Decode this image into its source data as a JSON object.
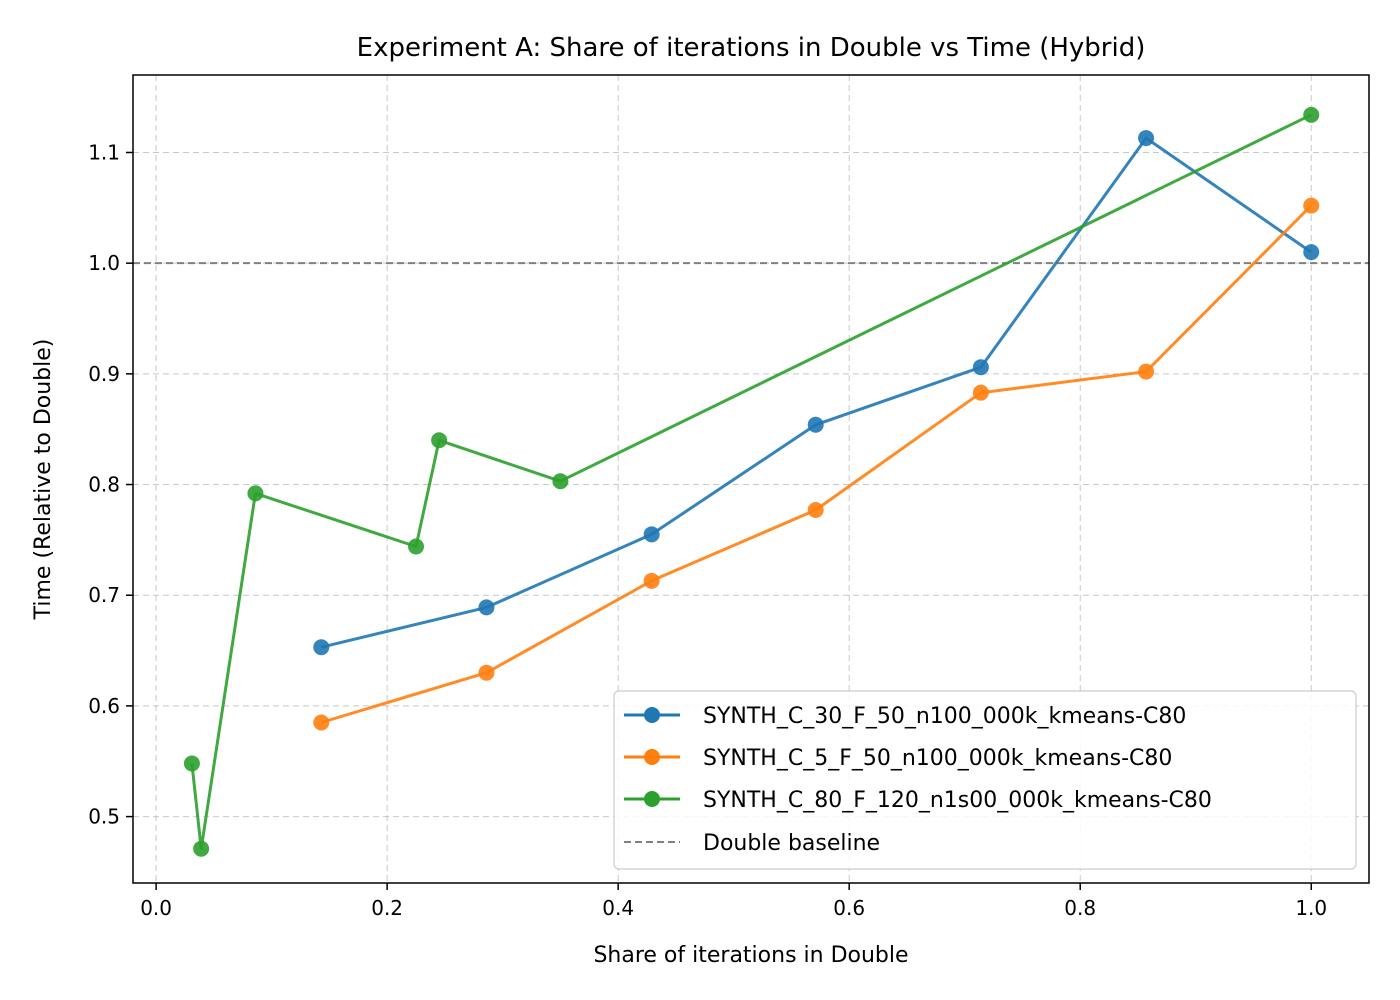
{
  "chart_data": {
    "type": "line",
    "title": "Experiment A: Share of iterations in Double vs Time (Hybrid)",
    "xlabel": "Share of iterations in Double",
    "ylabel": "Time (Relative to Double)",
    "xlim": [
      -0.02,
      1.05
    ],
    "ylim": [
      0.44,
      1.17
    ],
    "xticks": [
      0.0,
      0.2,
      0.4,
      0.6,
      0.8,
      1.0
    ],
    "xtick_labels": [
      "0.0",
      "0.2",
      "0.4",
      "0.6",
      "0.8",
      "1.0"
    ],
    "yticks": [
      0.5,
      0.6,
      0.7,
      0.8,
      0.9,
      1.0,
      1.1
    ],
    "ytick_labels": [
      "0.5",
      "0.6",
      "0.7",
      "0.8",
      "0.9",
      "1.0",
      "1.1"
    ],
    "grid": true,
    "legend_position": "lower-right",
    "series": [
      {
        "name": "SYNTH_C_30_F_50_n100_000k_kmeans-C80",
        "color": "#1f77b4",
        "x": [
          0.143,
          0.286,
          0.429,
          0.571,
          0.714,
          0.857,
          1.0
        ],
        "y": [
          0.653,
          0.689,
          0.755,
          0.854,
          0.906,
          1.113,
          1.01
        ]
      },
      {
        "name": "SYNTH_C_5_F_50_n100_000k_kmeans-C80",
        "color": "#ff7f0e",
        "x": [
          0.143,
          0.286,
          0.429,
          0.571,
          0.714,
          0.857,
          1.0
        ],
        "y": [
          0.585,
          0.63,
          0.713,
          0.777,
          0.883,
          0.902,
          1.052
        ]
      },
      {
        "name": "SYNTH_C_80_F_120_n1s00_000k_kmeans-C80",
        "color": "#2ca02c",
        "x": [
          0.031,
          0.039,
          0.086,
          0.225,
          0.245,
          0.35,
          1.0
        ],
        "y": [
          0.548,
          0.471,
          0.792,
          0.744,
          0.84,
          0.803,
          1.134
        ]
      }
    ],
    "reference_line": {
      "name": "Double baseline",
      "y": 1.0,
      "color": "#808080",
      "style": "dashed"
    }
  }
}
